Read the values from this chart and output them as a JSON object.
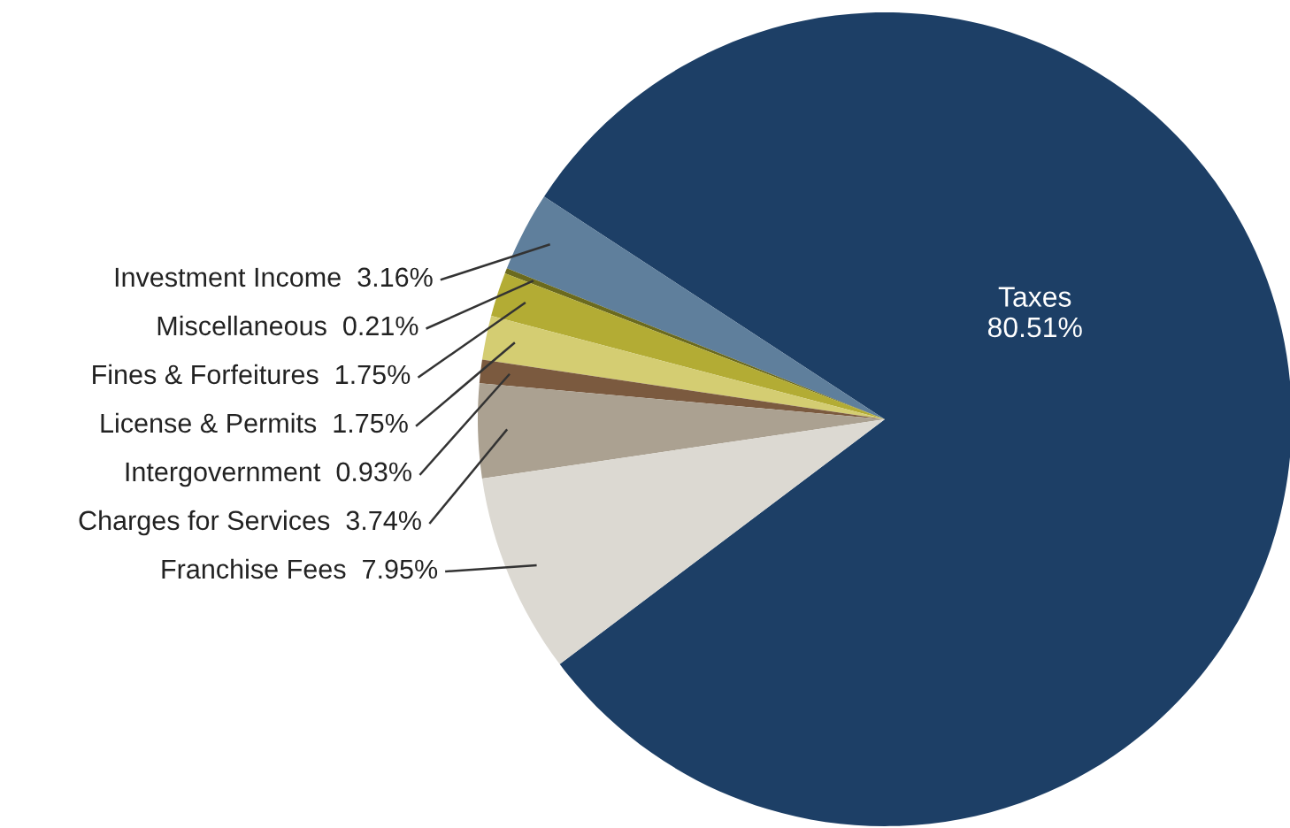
{
  "chart_data": {
    "type": "pie",
    "categories": [
      "Taxes",
      "Investment Income",
      "Miscellaneous",
      "Fines & Forfeitures",
      "License & Permits",
      "Intergovernment",
      "Charges for Services",
      "Franchise Fees"
    ],
    "values": [
      80.51,
      3.16,
      0.21,
      1.75,
      1.75,
      0.93,
      3.74,
      7.95
    ],
    "value_labels": [
      "80.51%",
      "3.16%",
      "0.21%",
      "1.75%",
      "1.75%",
      "0.93%",
      "3.74%",
      "7.95%"
    ],
    "colors": [
      "#1d3f66",
      "#5f7f9c",
      "#6b6a1e",
      "#b3ac34",
      "#d4cd72",
      "#7b5a3f",
      "#aba191",
      "#dcd9d2"
    ]
  }
}
